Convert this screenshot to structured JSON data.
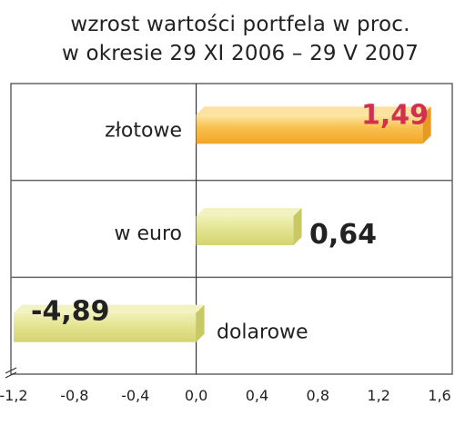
{
  "chart_data": {
    "type": "bar",
    "orientation": "horizontal",
    "title": [
      "wzrost wartości portfela w proc.",
      "w okresie 29 XI 2006 – 29 V 2007"
    ],
    "categories": [
      "złotowe",
      "w euro",
      "dolarowe"
    ],
    "value_labels": [
      "1,49",
      "0,64",
      "-4,89"
    ],
    "values": [
      1.49,
      0.64,
      -4.89
    ],
    "xlim": [
      -1.2,
      1.6
    ],
    "x_ticks": [
      -1.2,
      -0.8,
      -0.4,
      0.0,
      0.4,
      0.8,
      1.2,
      1.6
    ],
    "x_tick_labels": [
      "-1,2",
      "-0,8",
      "-0,4",
      "0,0",
      "0,4",
      "0,8",
      "1,2",
      "1,6"
    ],
    "axis_break": "left",
    "colors": {
      "bar_highlight": "#f6b43a",
      "bar_normal": "#dede84",
      "label_highlight": "#d0314e",
      "label_normal": "#222222",
      "grid": "#666666"
    }
  }
}
